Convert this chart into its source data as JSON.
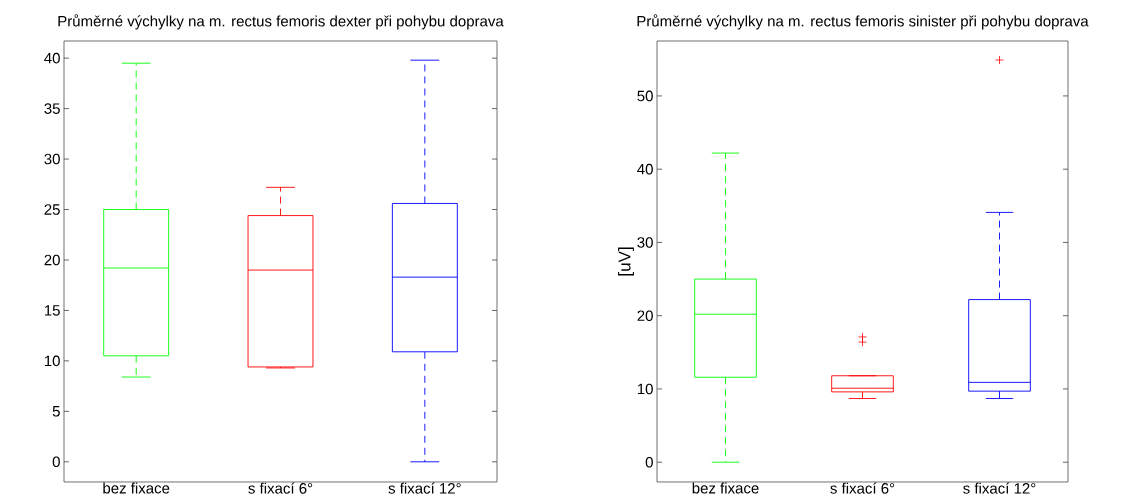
{
  "chart_data": [
    {
      "type": "box",
      "title": "Průměrné výchylky na m. rectus femoris dexter při pohybu doprava",
      "categories": [
        "bez fixace",
        "s fixací 6°",
        "s fixací 12°"
      ],
      "colors": [
        "#00ff00",
        "#ff0000",
        "#0000ff"
      ],
      "line_style": "dashed",
      "ylim": [
        -2,
        41.7
      ],
      "yticks": [
        0,
        5,
        10,
        15,
        20,
        25,
        30,
        35,
        40
      ],
      "boxes": [
        {
          "low": 8.4,
          "q1": 10.5,
          "median": 19.2,
          "q3": 25.0,
          "high": 39.5
        },
        {
          "low": 9.3,
          "q1": 9.4,
          "median": 19.0,
          "q3": 24.4,
          "high": 27.2
        },
        {
          "low": 0,
          "q1": 10.9,
          "median": 18.3,
          "q3": 25.6,
          "high": 39.8
        }
      ]
    },
    {
      "type": "box",
      "title": "Průměrné výchylky na m. rectus femoris sinister při pohybu doprava",
      "ylabel": "[uV]",
      "categories": [
        "bez fixace",
        "s fixací 6°",
        "s fixací 12°"
      ],
      "colors": [
        "#00ff00",
        "#ff0000",
        "#0000ff"
      ],
      "line_style": "dashed",
      "ylim": [
        -2.7,
        57.5
      ],
      "yticks": [
        0,
        10,
        20,
        30,
        40,
        50
      ],
      "boxes": [
        {
          "low": 0,
          "q1": 11.6,
          "median": 20.2,
          "q3": 25.0,
          "high": 42.2
        },
        {
          "low": 8.7,
          "q1": 9.6,
          "median": 10.1,
          "q3": 11.8,
          "high": 11.8,
          "outliers": [
            17.1,
            16.4
          ]
        },
        {
          "low": 8.7,
          "q1": 9.7,
          "median": 10.9,
          "q3": 22.2,
          "high": 34.1,
          "outliers": [
            54.9
          ]
        }
      ]
    }
  ]
}
